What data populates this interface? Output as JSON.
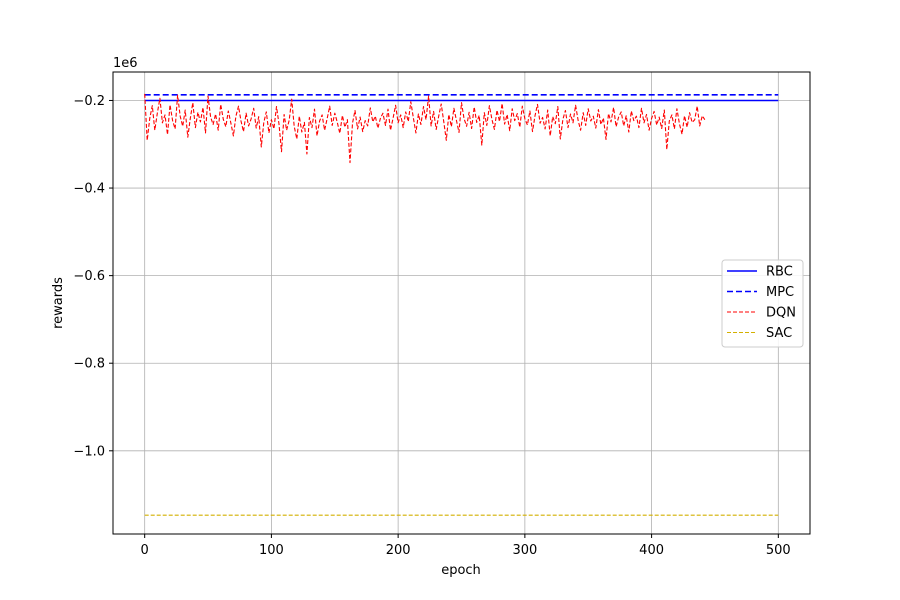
{
  "chart_data": {
    "type": "line",
    "title": "",
    "xlabel": "epoch",
    "ylabel": "rewards",
    "y_offset_label": "1e6",
    "xlim": [
      -25,
      525
    ],
    "ylim": [
      -1.19,
      -0.135
    ],
    "x_ticks": [
      0,
      100,
      200,
      300,
      400,
      500
    ],
    "y_ticks": [
      -0.2,
      -0.4,
      -0.6,
      -0.8,
      -1.0
    ],
    "x_tick_labels": [
      "0",
      "100",
      "200",
      "300",
      "400",
      "500"
    ],
    "y_tick_labels": [
      "−0.2",
      "−0.4",
      "−0.6",
      "−0.8",
      "−1.0"
    ],
    "grid": true,
    "legend_position": "center-right",
    "series": [
      {
        "name": "RBC",
        "color": "#0000ff",
        "style": "solid",
        "x": [
          0,
          500
        ],
        "y": [
          -0.2,
          -0.2
        ]
      },
      {
        "name": "MPC",
        "color": "#0000ff",
        "style": "dashed",
        "x": [
          0,
          500
        ],
        "y": [
          -0.187,
          -0.187
        ]
      },
      {
        "name": "DQN",
        "color": "#ff0000",
        "style": "dashed-thin",
        "x_start": 0,
        "x_step": 2,
        "y": [
          -0.185,
          -0.291,
          -0.24,
          -0.212,
          -0.268,
          -0.228,
          -0.195,
          -0.251,
          -0.233,
          -0.278,
          -0.21,
          -0.246,
          -0.265,
          -0.188,
          -0.236,
          -0.259,
          -0.222,
          -0.284,
          -0.241,
          -0.205,
          -0.262,
          -0.227,
          -0.249,
          -0.216,
          -0.274,
          -0.19,
          -0.238,
          -0.255,
          -0.231,
          -0.268,
          -0.209,
          -0.243,
          -0.26,
          -0.224,
          -0.252,
          -0.281,
          -0.236,
          -0.213,
          -0.247,
          -0.271,
          -0.229,
          -0.258,
          -0.242,
          -0.218,
          -0.263,
          -0.237,
          -0.306,
          -0.25,
          -0.226,
          -0.274,
          -0.244,
          -0.265,
          -0.214,
          -0.254,
          -0.317,
          -0.232,
          -0.268,
          -0.245,
          -0.197,
          -0.259,
          -0.288,
          -0.236,
          -0.272,
          -0.25,
          -0.322,
          -0.239,
          -0.262,
          -0.22,
          -0.281,
          -0.247,
          -0.233,
          -0.268,
          -0.241,
          -0.213,
          -0.257,
          -0.229,
          -0.25,
          -0.275,
          -0.234,
          -0.261,
          -0.244,
          -0.342,
          -0.252,
          -0.223,
          -0.265,
          -0.238,
          -0.271,
          -0.246,
          -0.258,
          -0.217,
          -0.249,
          -0.236,
          -0.263,
          -0.241,
          -0.229,
          -0.257,
          -0.22,
          -0.268,
          -0.24,
          -0.211,
          -0.251,
          -0.233,
          -0.262,
          -0.226,
          -0.248,
          -0.203,
          -0.239,
          -0.274,
          -0.231,
          -0.255,
          -0.214,
          -0.244,
          -0.19,
          -0.258,
          -0.225,
          -0.266,
          -0.236,
          -0.208,
          -0.249,
          -0.291,
          -0.232,
          -0.26,
          -0.218,
          -0.245,
          -0.273,
          -0.205,
          -0.241,
          -0.259,
          -0.227,
          -0.264,
          -0.215,
          -0.25,
          -0.234,
          -0.302,
          -0.228,
          -0.257,
          -0.212,
          -0.243,
          -0.266,
          -0.222,
          -0.248,
          -0.207,
          -0.254,
          -0.232,
          -0.269,
          -0.219,
          -0.246,
          -0.23,
          -0.261,
          -0.213,
          -0.242,
          -0.256,
          -0.224,
          -0.271,
          -0.235,
          -0.209,
          -0.252,
          -0.239,
          -0.265,
          -0.222,
          -0.281,
          -0.237,
          -0.253,
          -0.214,
          -0.288,
          -0.243,
          -0.223,
          -0.262,
          -0.231,
          -0.251,
          -0.211,
          -0.245,
          -0.268,
          -0.228,
          -0.257,
          -0.219,
          -0.247,
          -0.236,
          -0.263,
          -0.221,
          -0.255,
          -0.24,
          -0.289,
          -0.23,
          -0.249,
          -0.216,
          -0.26,
          -0.238,
          -0.226,
          -0.258,
          -0.235,
          -0.272,
          -0.224,
          -0.246,
          -0.236,
          -0.262,
          -0.218,
          -0.251,
          -0.232,
          -0.268,
          -0.241,
          -0.225,
          -0.256,
          -0.238,
          -0.264,
          -0.222,
          -0.312,
          -0.247,
          -0.233,
          -0.265,
          -0.219,
          -0.254,
          -0.277,
          -0.235,
          -0.261,
          -0.228,
          -0.25,
          -0.244,
          -0.213,
          -0.258,
          -0.235,
          -0.244
        ]
      },
      {
        "name": "SAC",
        "color": "#d4b000",
        "style": "dashed-thin",
        "x": [
          0,
          500
        ],
        "y": [
          -1.147,
          -1.147
        ]
      }
    ]
  }
}
